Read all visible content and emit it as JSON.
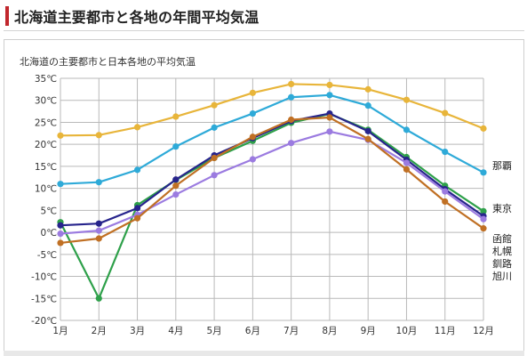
{
  "page": {
    "heading": "北海道主要都市と各地の年間平均気温"
  },
  "colors": {
    "heading_bar": "#c1272d",
    "grid": "#b9b9b9",
    "axis_text": "#333333"
  },
  "chart_data": {
    "type": "line",
    "title": "北海道の主要都市と日本各地の平均気温",
    "xlabel": "",
    "ylabel": "",
    "ylim": [
      -20,
      35
    ],
    "yticks": [
      -20,
      -15,
      -10,
      -5,
      0,
      5,
      10,
      15,
      20,
      25,
      30,
      35
    ],
    "ytick_labels": [
      "-20℃",
      "-15℃",
      "-10℃",
      "-5℃",
      "0℃",
      "5℃",
      "10℃",
      "15℃",
      "20℃",
      "25℃",
      "30℃",
      "35℃"
    ],
    "categories": [
      "1月",
      "2月",
      "3月",
      "4月",
      "5月",
      "6月",
      "7月",
      "8月",
      "9月",
      "10月",
      "11月",
      "12月"
    ],
    "grid": true,
    "legend": "right end labels",
    "series": [
      {
        "name": "那覇",
        "color": "#e8b53a",
        "values": [
          22.0,
          22.1,
          23.9,
          26.3,
          28.9,
          31.7,
          33.7,
          33.5,
          32.5,
          30.1,
          27.1,
          23.6
        ]
      },
      {
        "name": "東京",
        "color": "#2eaad8",
        "values": [
          11.0,
          11.4,
          14.2,
          19.5,
          23.8,
          27.0,
          30.7,
          31.2,
          28.8,
          23.3,
          18.3,
          13.6
        ]
      },
      {
        "name": "函館",
        "color": "#2ea04a",
        "values": [
          2.3,
          -15.0,
          6.2,
          11.9,
          16.9,
          20.8,
          24.9,
          26.9,
          23.3,
          17.1,
          10.6,
          4.8
        ]
      },
      {
        "name": "札幌",
        "color": "#27248c",
        "values": [
          1.6,
          2.0,
          5.5,
          12.0,
          17.5,
          21.4,
          25.3,
          27.0,
          23.0,
          16.5,
          9.8,
          3.7
        ]
      },
      {
        "name": "釧路",
        "color": "#9b7be0",
        "values": [
          -0.3,
          0.4,
          4.0,
          8.6,
          13.0,
          16.6,
          20.3,
          22.9,
          21.0,
          15.8,
          9.3,
          3.0
        ]
      },
      {
        "name": "旭川",
        "color": "#c07024",
        "values": [
          -2.4,
          -1.4,
          3.2,
          10.6,
          16.9,
          21.7,
          25.6,
          26.1,
          21.2,
          14.3,
          7.0,
          0.9
        ]
      }
    ]
  }
}
